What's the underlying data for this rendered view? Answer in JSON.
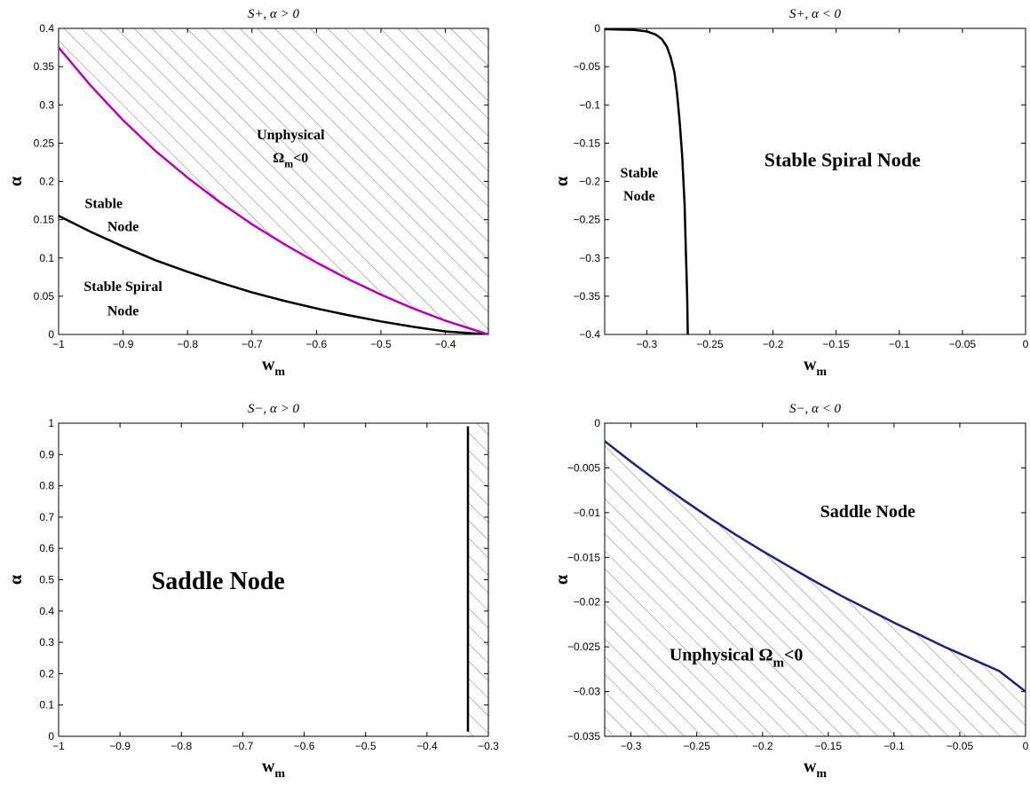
{
  "chart_data": [
    {
      "type": "line",
      "title": "S+,   α > 0",
      "xlabel": "w",
      "xlabel_sub": "m",
      "ylabel": "α",
      "xlim": [
        -1,
        -0.3333
      ],
      "ylim": [
        0,
        0.4
      ],
      "xticks": [
        -1,
        -0.9,
        -0.8,
        -0.7,
        -0.6,
        -0.5,
        -0.4
      ],
      "xtick_labels": [
        "−1",
        "−0.9",
        "−0.8",
        "−0.7",
        "−0.6",
        "−0.5",
        "−0.4"
      ],
      "yticks": [
        0,
        0.05,
        0.1,
        0.15,
        0.2,
        0.25,
        0.3,
        0.35,
        0.4
      ],
      "ytick_labels": [
        "0",
        "0.05",
        "0.1",
        "0.15",
        "0.2",
        "0.25",
        "0.3",
        "0.35",
        "0.4"
      ],
      "grid": false,
      "series": [
        {
          "color": "#000000",
          "x": [
            -1,
            -0.95,
            -0.9,
            -0.85,
            -0.8,
            -0.75,
            -0.7,
            -0.65,
            -0.6,
            -0.55,
            -0.5,
            -0.45,
            -0.4,
            -0.3333
          ],
          "y": [
            0.155,
            0.134,
            0.115,
            0.097,
            0.082,
            0.068,
            0.055,
            0.044,
            0.034,
            0.025,
            0.017,
            0.01,
            0.004,
            0
          ]
        },
        {
          "color": "#b400b4",
          "x": [
            -1,
            -0.95,
            -0.9,
            -0.85,
            -0.8,
            -0.75,
            -0.7,
            -0.65,
            -0.6,
            -0.55,
            -0.5,
            -0.45,
            -0.4,
            -0.3333
          ],
          "y": [
            0.375,
            0.325,
            0.28,
            0.24,
            0.205,
            0.173,
            0.144,
            0.118,
            0.094,
            0.072,
            0.052,
            0.034,
            0.018,
            0
          ]
        }
      ],
      "hatched_region": "above-curve-2",
      "annotations": [
        {
          "text": "Unphysical",
          "x": -0.64,
          "y": 0.255
        },
        {
          "text": "Ω",
          "sub": "m",
          "after": "<0",
          "x": -0.64,
          "y": 0.225
        },
        {
          "text": "Stable",
          "x": -0.93,
          "y": 0.165
        },
        {
          "text": "Node",
          "x": -0.9,
          "y": 0.135
        },
        {
          "text": "Stable Spiral",
          "x": -0.9,
          "y": 0.057
        },
        {
          "text": "Node",
          "x": -0.9,
          "y": 0.025
        }
      ]
    },
    {
      "type": "line",
      "title": "S+,   α < 0",
      "xlabel": "w",
      "xlabel_sub": "m",
      "ylabel": "α",
      "xlim": [
        -0.3333,
        0
      ],
      "ylim": [
        -0.4,
        0
      ],
      "xticks": [
        -0.3,
        -0.25,
        -0.2,
        -0.15,
        -0.1,
        -0.05,
        0
      ],
      "xtick_labels": [
        "−0.3",
        "−0.25",
        "−0.2",
        "−0.15",
        "−0.1",
        "−0.05",
        "0"
      ],
      "yticks": [
        -0.4,
        -0.35,
        -0.3,
        -0.25,
        -0.2,
        -0.15,
        -0.1,
        -0.05,
        0
      ],
      "ytick_labels": [
        "−0.4",
        "−0.35",
        "−0.3",
        "−0.25",
        "−0.2",
        "−0.15",
        "−0.1",
        "−0.05",
        "0"
      ],
      "grid": false,
      "series": [
        {
          "color": "#000000",
          "x": [
            -0.3333,
            -0.31,
            -0.3,
            -0.293,
            -0.288,
            -0.284,
            -0.281,
            -0.278,
            -0.276,
            -0.274,
            -0.272,
            -0.27,
            -0.269,
            -0.268,
            -0.2675
          ],
          "y": [
            -0.001,
            -0.002,
            -0.004,
            -0.008,
            -0.014,
            -0.024,
            -0.038,
            -0.058,
            -0.085,
            -0.12,
            -0.165,
            -0.23,
            -0.29,
            -0.35,
            -0.4
          ]
        }
      ],
      "hatched_region": null,
      "annotations": [
        {
          "text": "Stable",
          "x": -0.306,
          "y": -0.195
        },
        {
          "text": "Node",
          "x": -0.306,
          "y": -0.225
        },
        {
          "text": "Stable Spiral Node",
          "x": -0.145,
          "y": -0.18
        }
      ]
    },
    {
      "type": "line",
      "title": "S−,   α > 0",
      "xlabel": "w",
      "xlabel_sub": "m",
      "ylabel": "α",
      "xlim": [
        -1,
        -0.3
      ],
      "ylim": [
        0,
        1
      ],
      "xticks": [
        -1,
        -0.9,
        -0.8,
        -0.7,
        -0.6,
        -0.5,
        -0.4,
        -0.3
      ],
      "xtick_labels": [
        "−1",
        "−0.9",
        "−0.8",
        "−0.7",
        "−0.6",
        "−0.5",
        "−0.4",
        "−0.3"
      ],
      "yticks": [
        0,
        0.1,
        0.2,
        0.3,
        0.4,
        0.5,
        0.6,
        0.7,
        0.8,
        0.9,
        1
      ],
      "ytick_labels": [
        "0",
        "0.1",
        "0.2",
        "0.3",
        "0.4",
        "0.5",
        "0.6",
        "0.7",
        "0.8",
        "0.9",
        "1"
      ],
      "grid": false,
      "series": [
        {
          "color": "#000000",
          "x": [
            -0.3333,
            -0.3333
          ],
          "y": [
            0.015,
            0.99
          ]
        }
      ],
      "hatched_region": "right-of-line",
      "annotations": [
        {
          "text": "Saddle Node",
          "x": -0.74,
          "y": 0.47
        }
      ]
    },
    {
      "type": "line",
      "title": "S−,   α < 0",
      "xlabel": "w",
      "xlabel_sub": "m",
      "ylabel": "α",
      "xlim": [
        -0.32,
        0
      ],
      "ylim": [
        -0.035,
        0
      ],
      "xticks": [
        -0.3,
        -0.25,
        -0.2,
        -0.15,
        -0.1,
        -0.05,
        0
      ],
      "xtick_labels": [
        "−0.3",
        "−0.25",
        "−0.2",
        "−0.15",
        "−0.1",
        "−0.05",
        "0"
      ],
      "yticks": [
        -0.035,
        -0.03,
        -0.025,
        -0.02,
        -0.015,
        -0.01,
        -0.005,
        0
      ],
      "ytick_labels": [
        "−0.035",
        "−0.03",
        "−0.025",
        "−0.02",
        "−0.015",
        "−0.01",
        "−0.005",
        "0"
      ],
      "grid": false,
      "series": [
        {
          "color": "#1a237e",
          "x": [
            -0.32,
            -0.3,
            -0.28,
            -0.26,
            -0.24,
            -0.22,
            -0.2,
            -0.18,
            -0.16,
            -0.14,
            -0.12,
            -0.1,
            -0.08,
            -0.06,
            -0.04,
            -0.02,
            0
          ],
          "y": [
            -0.002,
            -0.0043,
            -0.0065,
            -0.0086,
            -0.0106,
            -0.0125,
            -0.0143,
            -0.016,
            -0.0177,
            -0.0193,
            -0.0208,
            -0.0223,
            -0.0237,
            -0.0251,
            -0.0264,
            -0.0277,
            -0.03
          ]
        }
      ],
      "hatched_region": "below-curve",
      "annotations": [
        {
          "text": "Saddle Node",
          "x": -0.12,
          "y": -0.0105
        },
        {
          "text": "Unphysical Ω",
          "sub": "m",
          "after": "<0",
          "x": -0.22,
          "y": -0.0265
        }
      ]
    }
  ]
}
